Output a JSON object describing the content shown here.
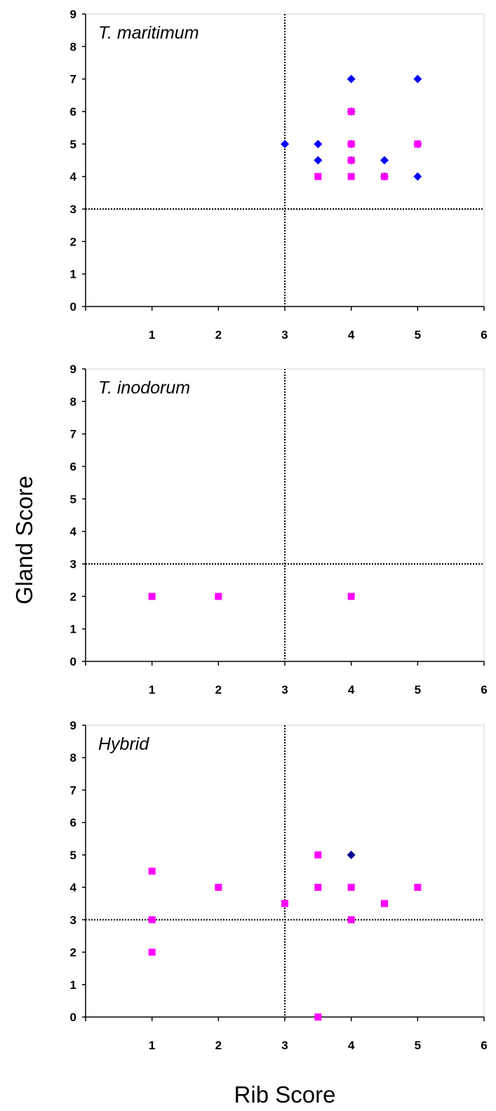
{
  "figure": {
    "ylabel": "Gland Score",
    "xlabel": "Rib Score"
  },
  "colors": {
    "magenta": "#ff00ff",
    "blue": "#0000ff",
    "navy": "#00008b",
    "reference_line": "#000000"
  },
  "chart_data": [
    {
      "type": "scatter",
      "title": "T. maritimum",
      "xlim": [
        0,
        6
      ],
      "ylim": [
        0,
        9
      ],
      "x_ticks": [
        1,
        2,
        3,
        4,
        5,
        6
      ],
      "y_ticks": [
        0,
        1,
        2,
        3,
        4,
        5,
        6,
        7,
        8,
        9
      ],
      "reference_lines": {
        "x": 3,
        "y": 3
      },
      "grid": false,
      "series": [
        {
          "marker": "diamond",
          "color": "#0000ff",
          "points": [
            [
              3,
              5
            ],
            [
              3.5,
              5
            ],
            [
              3.5,
              4.5
            ],
            [
              4,
              7
            ],
            [
              4,
              6
            ],
            [
              4,
              5
            ],
            [
              4,
              4.5
            ],
            [
              4.5,
              4.5
            ],
            [
              4.5,
              4
            ],
            [
              5,
              7
            ],
            [
              5,
              5
            ],
            [
              5,
              4
            ]
          ]
        },
        {
          "marker": "square",
          "color": "#ff00ff",
          "points": [
            [
              3.5,
              4
            ],
            [
              4,
              6
            ],
            [
              4,
              5
            ],
            [
              4,
              4.5
            ],
            [
              4,
              4
            ],
            [
              4.5,
              4
            ],
            [
              5,
              5
            ]
          ]
        }
      ]
    },
    {
      "type": "scatter",
      "title": "T. inodorum",
      "xlim": [
        0,
        6
      ],
      "ylim": [
        0,
        9
      ],
      "x_ticks": [
        1,
        2,
        3,
        4,
        5,
        6
      ],
      "y_ticks": [
        0,
        1,
        2,
        3,
        4,
        5,
        6,
        7,
        8,
        9
      ],
      "reference_lines": {
        "x": 3,
        "y": 3
      },
      "grid": false,
      "series": [
        {
          "marker": "square",
          "color": "#ff00ff",
          "points": [
            [
              1,
              2
            ],
            [
              2,
              2
            ],
            [
              4,
              2
            ]
          ]
        }
      ]
    },
    {
      "type": "scatter",
      "title": "Hybrid",
      "xlim": [
        0,
        6
      ],
      "ylim": [
        0,
        9
      ],
      "x_ticks": [
        1,
        2,
        3,
        4,
        5,
        6
      ],
      "y_ticks": [
        0,
        1,
        2,
        3,
        4,
        5,
        6,
        7,
        8,
        9
      ],
      "reference_lines": {
        "x": 3,
        "y": 3
      },
      "grid": false,
      "series": [
        {
          "marker": "square",
          "color": "#ff00ff",
          "points": [
            [
              1,
              4.5
            ],
            [
              1,
              3
            ],
            [
              1,
              2
            ],
            [
              2,
              4
            ],
            [
              3,
              3.5
            ],
            [
              3.5,
              5
            ],
            [
              3.5,
              4
            ],
            [
              3.5,
              0
            ],
            [
              4,
              4
            ],
            [
              4,
              3
            ],
            [
              4.5,
              3.5
            ],
            [
              5,
              4
            ]
          ]
        },
        {
          "marker": "diamond",
          "color": "#00008b",
          "points": [
            [
              4,
              5
            ]
          ]
        }
      ]
    }
  ]
}
